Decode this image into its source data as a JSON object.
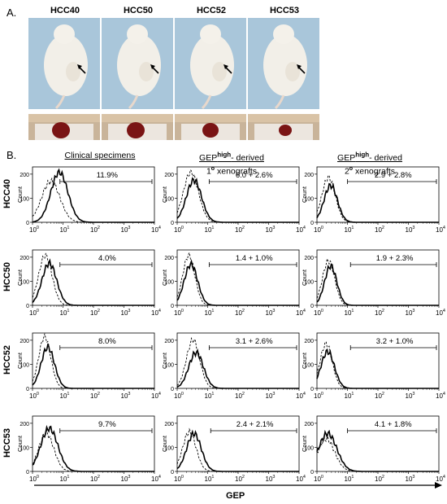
{
  "panel_a": {
    "letter": "A.",
    "samples": [
      "HCC40",
      "HCC50",
      "HCC52",
      "HCC53"
    ]
  },
  "panel_b": {
    "letter": "B.",
    "columns": [
      {
        "line1": "Clinical specimens",
        "line2": "",
        "sup": ""
      },
      {
        "line1": "GEP",
        "sup": "high",
        "line1b": "- derived",
        "line2": "1",
        "line2sup": "o",
        "line2b": " xenografts"
      },
      {
        "line1": "GEP",
        "sup": "high",
        "line1b": "- derived",
        "line2": "2",
        "line2sup": "o",
        "line2b": " xenografts"
      }
    ],
    "rows": [
      "HCC40",
      "HCC50",
      "HCC52",
      "HCC53"
    ],
    "percentages": [
      [
        "11.9%",
        "6.0 + 2.6%",
        "2.9 + 2.8%"
      ],
      [
        "4.0%",
        "1.4 + 1.0%",
        "1.9 + 2.3%"
      ],
      [
        "8.0%",
        "3.1 + 2.6%",
        "3.2 + 1.0%"
      ],
      [
        "9.7%",
        "2.4 + 2.1%",
        "4.1 + 1.8%"
      ]
    ],
    "y_label": "Count",
    "y_ticks": [
      "0",
      "100",
      "200"
    ],
    "x_ticks_base": "10",
    "x_ticks_exp": [
      "0",
      "1",
      "2",
      "3",
      "4"
    ],
    "x_axis_label": "GEP",
    "colors": {
      "photo_bg": "#a9c6da",
      "organ_bg": "#c9b49a",
      "tumor": "#7a1414"
    }
  }
}
